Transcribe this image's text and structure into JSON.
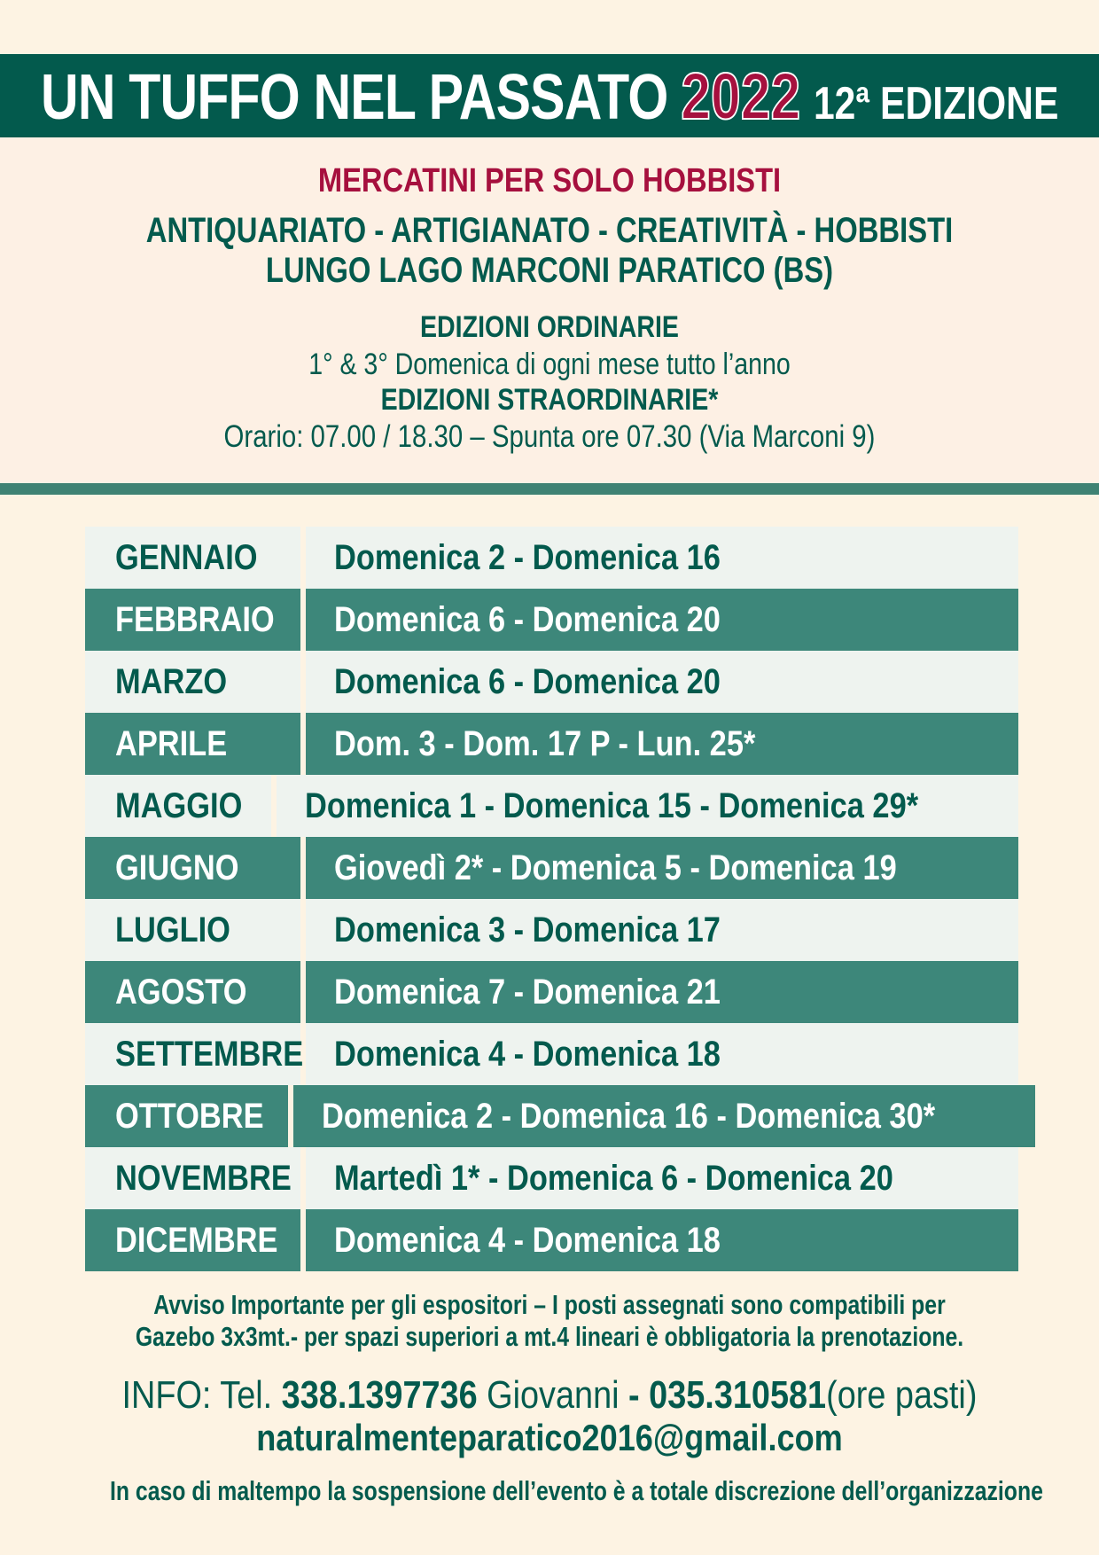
{
  "header": {
    "title": "UN TUFFO NEL PASSATO",
    "year": "2022",
    "edition": "12ª EDIZIONE"
  },
  "intro": {
    "subtitle": "MERCATINI PER SOLO HOBBISTI",
    "categories": "ANTIQUARIATO - ARTIGIANATO - CREATIVITÀ - HOBBISTI",
    "location": "LUNGO LAGO MARCONI PARATICO (BS)",
    "ordinary_heading": "EDIZIONI ORDINARIE",
    "ordinary_text": "1° & 3° Domenica di ogni mese tutto l’anno",
    "extraordinary_heading": "EDIZIONI STRAORDINARIE*",
    "hours": "Orario: 07.00 / 18.30 – Spunta ore 07.30 (Via Marconi 9)"
  },
  "schedule": [
    {
      "month": "GENNAIO",
      "dates": "Domenica 2 - Domenica 16"
    },
    {
      "month": "FEBBRAIO",
      "dates": "Domenica 6 - Domenica 20"
    },
    {
      "month": "MARZO",
      "dates": "Domenica 6 - Domenica 20"
    },
    {
      "month": "APRILE",
      "dates": "Dom. 3 - Dom. 17 P - Lun. 25*"
    },
    {
      "month": "MAGGIO",
      "dates": "Domenica 1 - Domenica 15 - Domenica 29*"
    },
    {
      "month": "GIUGNO",
      "dates": "Giovedì 2* - Domenica 5 - Domenica 19"
    },
    {
      "month": "LUGLIO",
      "dates": "Domenica 3 - Domenica 17"
    },
    {
      "month": "AGOSTO",
      "dates": "Domenica 7 - Domenica 21"
    },
    {
      "month": "SETTEMBRE",
      "dates": "Domenica 4 - Domenica 18"
    },
    {
      "month": "OTTOBRE",
      "dates": "Domenica 2 - Domenica 16 - Domenica 30*"
    },
    {
      "month": "NOVEMBRE",
      "dates": "Martedì 1* - Domenica 6 - Domenica 20"
    },
    {
      "month": "DICEMBRE",
      "dates": "Domenica 4 - Domenica 18"
    }
  ],
  "footer": {
    "notice_line1": "Avviso Importante per gli espositori – I posti assegnati sono compatibili per",
    "notice_line2": "Gazebo 3x3mt.- per spazi superiori a mt.4 lineari è obbligatoria la prenotazione.",
    "info_prefix": "INFO: Tel.",
    "phone1": "338.1397736",
    "contact_name": "Giovanni",
    "separator": "-",
    "phone2": "035.310581",
    "phone2_note": "(ore pasti)",
    "email": "naturalmenteparatico2016@gmail.com",
    "weather_note": "In caso di maltempo la sospensione dell’evento è a totale discrezione dell’organizzazione"
  },
  "colors": {
    "dark_green": "#035a4d",
    "teal": "#3d877a",
    "crimson": "#a6103e",
    "cream": "#fdf3e3"
  }
}
